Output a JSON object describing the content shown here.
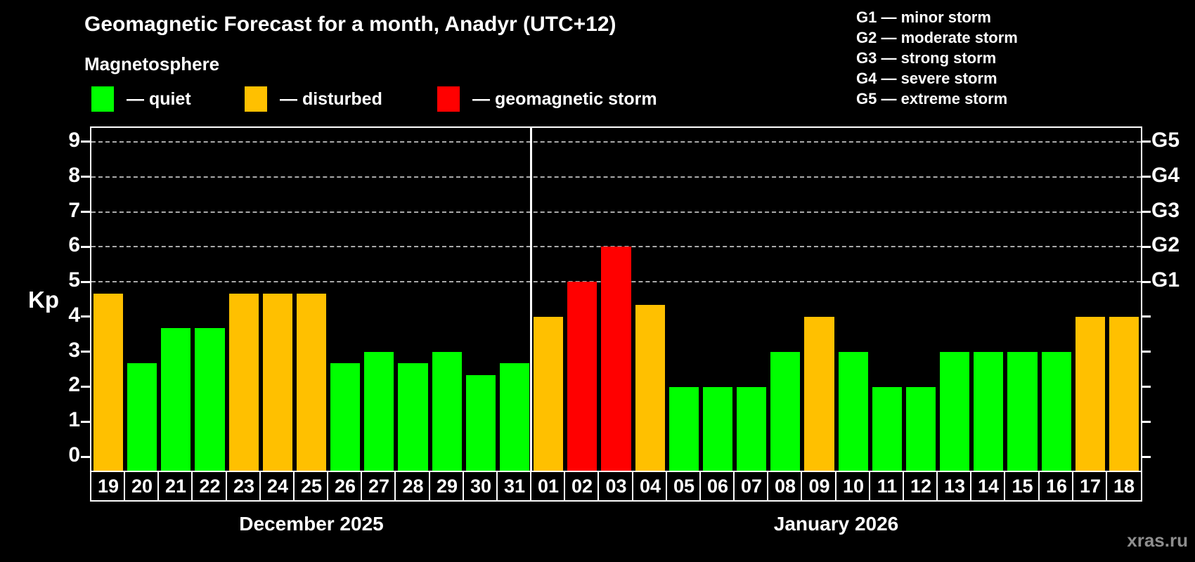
{
  "title": "Geomagnetic Forecast for a month, Anadyr (UTC+12)",
  "subtitle": "Magnetosphere",
  "legend": {
    "quiet": "— quiet",
    "disturbed": "— disturbed",
    "storm": "— geomagnetic storm"
  },
  "g_legend": [
    "G1 — minor storm",
    "G2 — moderate storm",
    "G3 — strong storm",
    "G4 — severe storm",
    "G5 — extreme storm"
  ],
  "watermark": "xras.ru",
  "colors": {
    "quiet": "#00FF00",
    "disturbed": "#FFC000",
    "storm": "#FF0000",
    "background": "#000000",
    "axis": "#FFFFFF",
    "gridline": "#AAAAAA",
    "watermark": "#8E8E8E"
  },
  "chart_data": {
    "type": "bar",
    "title": "Geomagnetic Forecast for a month, Anadyr (UTC+12)",
    "ylabel": "Kp",
    "xlabel": "",
    "ylim": [
      -0.4,
      9.4
    ],
    "yticks": [
      0,
      1,
      2,
      3,
      4,
      5,
      6,
      7,
      8,
      9
    ],
    "gridlines_at": [
      5,
      6,
      7,
      8,
      9
    ],
    "grid": "dashed, storm levels only",
    "legend_position": "top-left",
    "g_scale": [
      {
        "label": "G1",
        "kp": 5
      },
      {
        "label": "G2",
        "kp": 6
      },
      {
        "label": "G3",
        "kp": 7
      },
      {
        "label": "G4",
        "kp": 8
      },
      {
        "label": "G5",
        "kp": 9
      }
    ],
    "months": [
      {
        "label": "December 2025",
        "days": [
          {
            "day": "19",
            "kp": 4.67,
            "status": "disturbed"
          },
          {
            "day": "20",
            "kp": 2.67,
            "status": "quiet"
          },
          {
            "day": "21",
            "kp": 3.67,
            "status": "quiet"
          },
          {
            "day": "22",
            "kp": 3.67,
            "status": "quiet"
          },
          {
            "day": "23",
            "kp": 4.67,
            "status": "disturbed"
          },
          {
            "day": "24",
            "kp": 4.67,
            "status": "disturbed"
          },
          {
            "day": "25",
            "kp": 4.67,
            "status": "disturbed"
          },
          {
            "day": "26",
            "kp": 2.67,
            "status": "quiet"
          },
          {
            "day": "27",
            "kp": 3.0,
            "status": "quiet"
          },
          {
            "day": "28",
            "kp": 2.67,
            "status": "quiet"
          },
          {
            "day": "29",
            "kp": 3.0,
            "status": "quiet"
          },
          {
            "day": "30",
            "kp": 2.33,
            "status": "quiet"
          },
          {
            "day": "31",
            "kp": 2.67,
            "status": "quiet"
          }
        ]
      },
      {
        "label": "January 2026",
        "days": [
          {
            "day": "01",
            "kp": 4.0,
            "status": "disturbed"
          },
          {
            "day": "02",
            "kp": 5.0,
            "status": "storm"
          },
          {
            "day": "03",
            "kp": 6.0,
            "status": "storm"
          },
          {
            "day": "04",
            "kp": 4.33,
            "status": "disturbed"
          },
          {
            "day": "05",
            "kp": 2.0,
            "status": "quiet"
          },
          {
            "day": "06",
            "kp": 2.0,
            "status": "quiet"
          },
          {
            "day": "07",
            "kp": 2.0,
            "status": "quiet"
          },
          {
            "day": "08",
            "kp": 3.0,
            "status": "quiet"
          },
          {
            "day": "09",
            "kp": 4.0,
            "status": "disturbed"
          },
          {
            "day": "10",
            "kp": 3.0,
            "status": "quiet"
          },
          {
            "day": "11",
            "kp": 2.0,
            "status": "quiet"
          },
          {
            "day": "12",
            "kp": 2.0,
            "status": "quiet"
          },
          {
            "day": "13",
            "kp": 3.0,
            "status": "quiet"
          },
          {
            "day": "14",
            "kp": 3.0,
            "status": "quiet"
          },
          {
            "day": "15",
            "kp": 3.0,
            "status": "quiet"
          },
          {
            "day": "16",
            "kp": 3.0,
            "status": "quiet"
          },
          {
            "day": "17",
            "kp": 4.0,
            "status": "disturbed"
          },
          {
            "day": "18",
            "kp": 4.0,
            "status": "disturbed"
          }
        ]
      }
    ]
  }
}
